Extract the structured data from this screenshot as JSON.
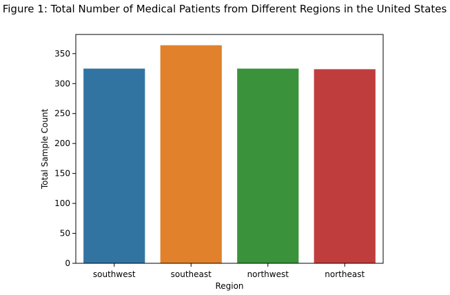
{
  "chart_data": {
    "type": "bar",
    "title": "Figure 1: Total Number of Medical Patients from Different Regions in the United States",
    "xlabel": "Region",
    "ylabel": "Total Sample Count",
    "categories": [
      "southwest",
      "southeast",
      "northwest",
      "northeast"
    ],
    "values": [
      325,
      364,
      325,
      324
    ],
    "colors": [
      "#3274a1",
      "#e1812c",
      "#3a923a",
      "#c03d3e"
    ],
    "ylim": [
      0,
      382
    ],
    "yticks": [
      0,
      50,
      100,
      150,
      200,
      250,
      300,
      350
    ],
    "grid": false,
    "legend": "none"
  }
}
